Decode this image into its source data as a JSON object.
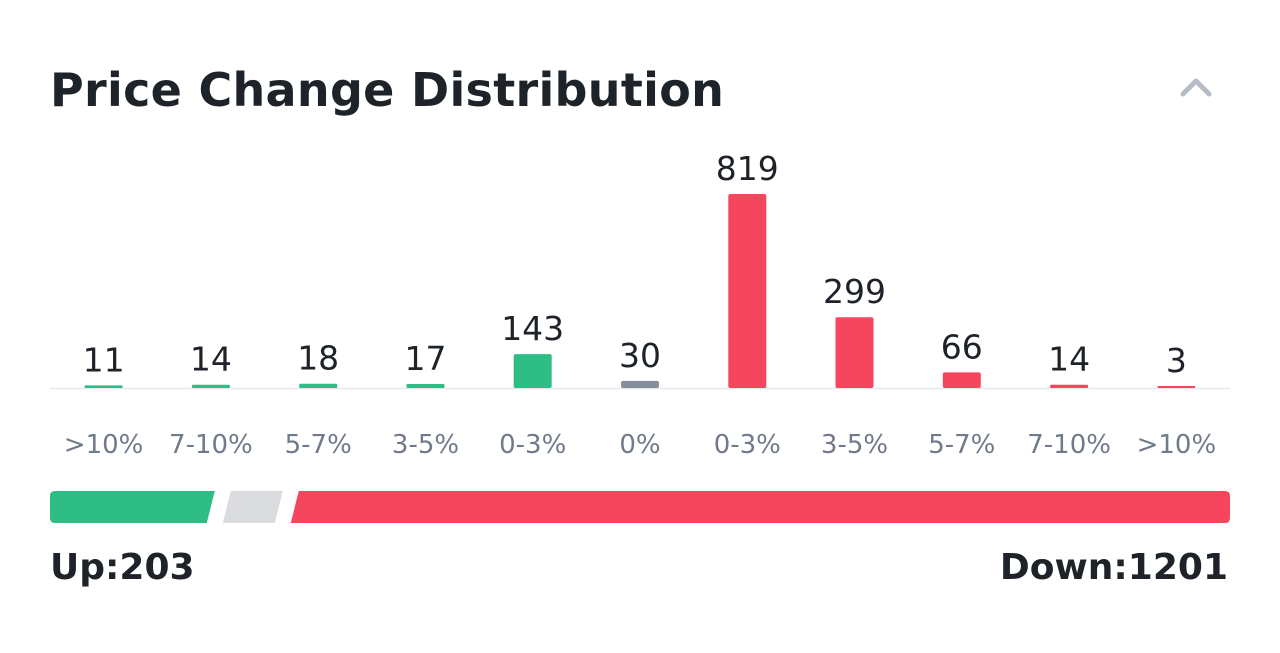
{
  "header": {
    "title": "Price Change Distribution"
  },
  "icons": {
    "collapse": "chevron-up-icon"
  },
  "colors": {
    "up": "#2ebd85",
    "flat": "#848e9c",
    "down": "#f6465d",
    "neutral_segment": "#dadce0",
    "axis": "#e6e8ea",
    "value_text": "#1e2329",
    "label_text": "#707a8a"
  },
  "chart_data": {
    "type": "bar",
    "categories": [
      ">10%",
      "7-10%",
      "5-7%",
      "3-5%",
      "0-3%",
      "0%",
      "0-3%",
      "3-5%",
      "5-7%",
      "7-10%",
      ">10%"
    ],
    "values": [
      11,
      14,
      18,
      17,
      143,
      30,
      819,
      299,
      66,
      14,
      3
    ],
    "groups": [
      "up",
      "up",
      "up",
      "up",
      "up",
      "flat",
      "down",
      "down",
      "down",
      "down",
      "down"
    ],
    "ylim": [
      0,
      819
    ],
    "grid": false
  },
  "summary": {
    "up_label": "Up:203",
    "down_label": "Down:1201",
    "up": 203,
    "flat": 30,
    "down": 1201
  }
}
